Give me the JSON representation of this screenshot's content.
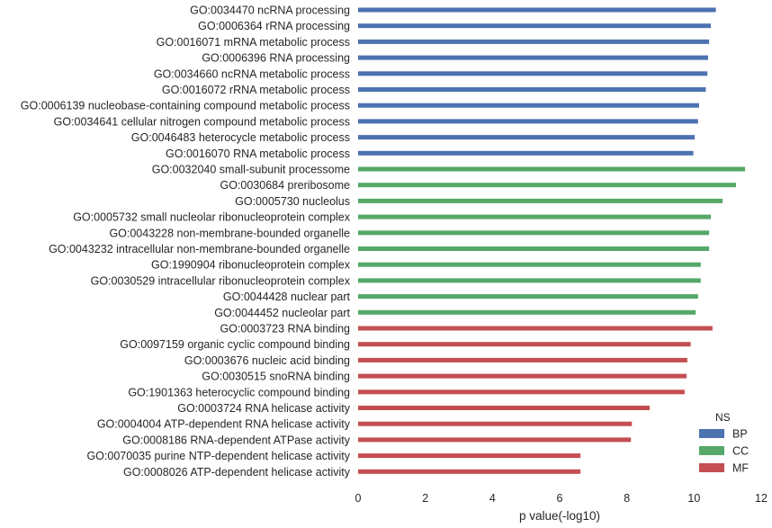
{
  "chart_data": {
    "type": "bar",
    "orientation": "horizontal",
    "xlabel": "p value(-log10)",
    "ylabel": "",
    "xlim": [
      0,
      12
    ],
    "x_ticks": [
      0,
      2,
      4,
      6,
      8,
      10,
      12
    ],
    "grid": false,
    "legend": {
      "title": "NS",
      "placement": "bottom-right"
    },
    "categories": [
      "GO:0034470 ncRNA processing",
      "GO:0006364 rRNA processing",
      "GO:0016071 mRNA metabolic process",
      "GO:0006396 RNA processing",
      "GO:0034660 ncRNA metabolic process",
      "GO:0016072 rRNA metabolic process",
      "GO:0006139 nucleobase-containing compound metabolic process",
      "GO:0034641 cellular nitrogen compound metabolic process",
      "GO:0046483 heterocycle metabolic process",
      "GO:0016070 RNA metabolic process",
      "GO:0032040 small-subunit processome",
      "GO:0030684 preribosome",
      "GO:0005730 nucleolus",
      "GO:0005732 small nucleolar ribonucleoprotein complex",
      "GO:0043228 non-membrane-bounded organelle",
      "GO:0043232 intracellular non-membrane-bounded organelle",
      "GO:1990904 ribonucleoprotein complex",
      "GO:0030529 intracellular ribonucleoprotein complex",
      "GO:0044428 nuclear part",
      "GO:0044452 nucleolar part",
      "GO:0003723 RNA binding",
      "GO:0097159 organic cyclic compound binding",
      "GO:0003676 nucleic acid binding",
      "GO:0030515 snoRNA binding",
      "GO:1901363 heterocyclic compound binding",
      "GO:0003724 RNA helicase activity",
      "GO:0004004 ATP-dependent RNA helicase activity",
      "GO:0008186 RNA-dependent ATPase activity",
      "GO:0070035 purine NTP-dependent helicase activity",
      "GO:0008026 ATP-dependent helicase activity"
    ],
    "series": [
      {
        "name": "BP",
        "color": "#4c72b0",
        "values": [
          10.65,
          10.5,
          10.45,
          10.42,
          10.4,
          10.35,
          10.15,
          10.12,
          10.02,
          9.98,
          null,
          null,
          null,
          null,
          null,
          null,
          null,
          null,
          null,
          null,
          null,
          null,
          null,
          null,
          null,
          null,
          null,
          null,
          null,
          null
        ]
      },
      {
        "name": "CC",
        "color": "#55a868",
        "values": [
          null,
          null,
          null,
          null,
          null,
          null,
          null,
          null,
          null,
          null,
          11.52,
          11.25,
          10.85,
          10.5,
          10.45,
          10.45,
          10.2,
          10.2,
          10.12,
          10.05,
          null,
          null,
          null,
          null,
          null,
          null,
          null,
          null,
          null,
          null
        ]
      },
      {
        "name": "MF",
        "color": "#c44e52",
        "values": [
          null,
          null,
          null,
          null,
          null,
          null,
          null,
          null,
          null,
          null,
          null,
          null,
          null,
          null,
          null,
          null,
          null,
          null,
          null,
          null,
          10.55,
          9.9,
          9.8,
          9.78,
          9.72,
          8.68,
          8.15,
          8.12,
          6.62,
          6.62
        ]
      }
    ]
  }
}
